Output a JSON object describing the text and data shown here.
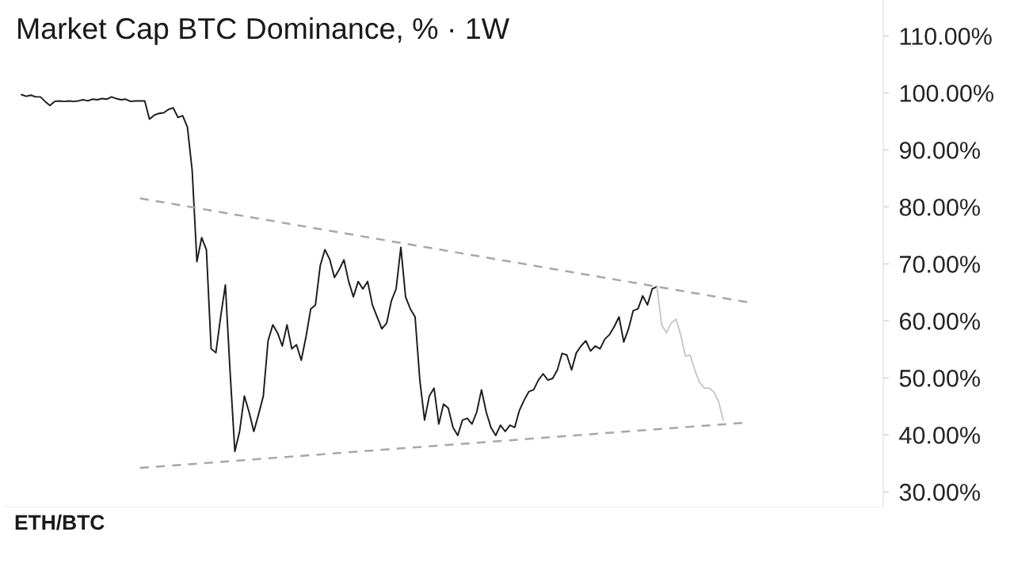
{
  "chart_data": {
    "type": "line",
    "title": "Market Cap BTC Dominance, % · 1W",
    "annotations": [
      "ETH/BTC"
    ],
    "categories": [
      null,
      null,
      null,
      null,
      null,
      null,
      null,
      null,
      null,
      null,
      null,
      null,
      null,
      null,
      null,
      null,
      null,
      null,
      null,
      null,
      null,
      null,
      null,
      null,
      null,
      null,
      null,
      null,
      null,
      null,
      null,
      null,
      null,
      null,
      null,
      null,
      null,
      null,
      null,
      null,
      null,
      null,
      null,
      null,
      null,
      null,
      null,
      null,
      null,
      null,
      null,
      null,
      null,
      null,
      null,
      null,
      null,
      null,
      null,
      null,
      null,
      null,
      null,
      null,
      null,
      null,
      null,
      null,
      null,
      null,
      null,
      null,
      null,
      null,
      null,
      null,
      null,
      null,
      null,
      null,
      null,
      null,
      null,
      null,
      null,
      null,
      null,
      null,
      null,
      null,
      null,
      null,
      null,
      null,
      null,
      null,
      null,
      null,
      null,
      null,
      null,
      null,
      null,
      null,
      null,
      null,
      null,
      null,
      null,
      null,
      null,
      null,
      null,
      null,
      null,
      null,
      null,
      null,
      null,
      null,
      null,
      null,
      null,
      null,
      null,
      null,
      null,
      null,
      null,
      null,
      null,
      null,
      null,
      null,
      null,
      null,
      null,
      null,
      null,
      null,
      null,
      null,
      null,
      null,
      null,
      null,
      null,
      null,
      null,
      null,
      null,
      null,
      null,
      null
    ],
    "series": [
      {
        "color": "#1c1c1c",
        "values": [
          99.7,
          99.4,
          99.6,
          99.3,
          99.3,
          98.5,
          97.8,
          98.5,
          98.6,
          98.5,
          98.6,
          98.5,
          98.6,
          98.8,
          98.6,
          98.9,
          98.8,
          99.0,
          98.9,
          99.3,
          99.0,
          98.8,
          98.9,
          98.5,
          98.6,
          98.6,
          98.6,
          95.4,
          96.1,
          96.4,
          96.5,
          97.1,
          97.4,
          95.7,
          96.0,
          94.0,
          86.4,
          70.4,
          74.6,
          72.5,
          55.1,
          54.4,
          60.7,
          66.3,
          51.0,
          37.1,
          40.6,
          46.8,
          44.0,
          40.6,
          43.6,
          46.8,
          56.5,
          59.3,
          57.9,
          55.6,
          59.3,
          55.1,
          55.8,
          53.1,
          57.2,
          62.1,
          62.8,
          69.7,
          72.5,
          70.8,
          67.6,
          69.0,
          70.7,
          66.9,
          64.2,
          66.9,
          65.6,
          66.9,
          62.8,
          60.7,
          58.6,
          59.6,
          63.5,
          65.6,
          72.9,
          64.2,
          62.1,
          60.7,
          49.6,
          42.6,
          46.8,
          48.2,
          41.9,
          45.4,
          44.7,
          41.3,
          39.9,
          42.6,
          42.9,
          41.9,
          44.0,
          47.9,
          44.0,
          41.3,
          39.9,
          41.7,
          40.6,
          41.7,
          41.3,
          44.3,
          46.1,
          47.6,
          47.9,
          49.6,
          50.7,
          49.6,
          49.9,
          51.4,
          54.3,
          54.0,
          51.4,
          54.4,
          55.6,
          56.5,
          54.7,
          55.6,
          55.1,
          56.8,
          57.6,
          59.0,
          60.7,
          56.3,
          58.6,
          61.8,
          62.1,
          64.4,
          62.8,
          65.6,
          66.0,
          null,
          null,
          null,
          null,
          null,
          null,
          null,
          null,
          null,
          null,
          null,
          null,
          null,
          null,
          null,
          null,
          null,
          null,
          null
        ]
      },
      {
        "color": "#c8c8c8",
        "values": [
          null,
          null,
          null,
          null,
          null,
          null,
          null,
          null,
          null,
          null,
          null,
          null,
          null,
          null,
          null,
          null,
          null,
          null,
          null,
          null,
          null,
          null,
          null,
          null,
          null,
          null,
          null,
          null,
          null,
          null,
          null,
          null,
          null,
          null,
          null,
          null,
          null,
          null,
          null,
          null,
          null,
          null,
          null,
          null,
          null,
          null,
          null,
          null,
          null,
          null,
          null,
          null,
          null,
          null,
          null,
          null,
          null,
          null,
          null,
          null,
          null,
          null,
          null,
          null,
          null,
          null,
          null,
          null,
          null,
          null,
          null,
          null,
          null,
          null,
          null,
          null,
          null,
          null,
          null,
          null,
          null,
          null,
          null,
          null,
          null,
          null,
          null,
          null,
          null,
          null,
          null,
          null,
          null,
          null,
          null,
          null,
          null,
          null,
          null,
          null,
          null,
          null,
          null,
          null,
          null,
          null,
          null,
          null,
          null,
          null,
          null,
          null,
          null,
          null,
          null,
          null,
          null,
          null,
          null,
          null,
          null,
          null,
          null,
          null,
          null,
          null,
          null,
          null,
          null,
          null,
          null,
          null,
          null,
          null,
          66.0,
          59.3,
          57.9,
          59.6,
          60.3,
          57.6,
          53.8,
          54.0,
          51.3,
          49.2,
          48.2,
          48.2,
          47.5,
          45.8,
          42.6,
          null,
          null,
          null,
          null,
          null
        ]
      },
      {
        "type": "line",
        "color": "#a8a8a8",
        "line_style": "dashed",
        "values": [
          null,
          null,
          null,
          null,
          null,
          null,
          null,
          null,
          null,
          null,
          null,
          null,
          null,
          null,
          null,
          null,
          null,
          null,
          null,
          null,
          null,
          null,
          null,
          null,
          null,
          81.5,
          null,
          null,
          null,
          null,
          null,
          null,
          null,
          null,
          null,
          null,
          null,
          null,
          null,
          null,
          null,
          null,
          null,
          null,
          null,
          null,
          null,
          null,
          null,
          null,
          null,
          null,
          null,
          null,
          null,
          null,
          null,
          null,
          null,
          null,
          null,
          null,
          null,
          null,
          null,
          null,
          null,
          null,
          null,
          null,
          null,
          null,
          null,
          null,
          null,
          null,
          null,
          null,
          null,
          null,
          null,
          null,
          null,
          null,
          null,
          null,
          null,
          null,
          null,
          null,
          null,
          null,
          null,
          null,
          null,
          null,
          null,
          null,
          null,
          null,
          null,
          null,
          null,
          null,
          null,
          null,
          null,
          null,
          null,
          null,
          null,
          null,
          null,
          null,
          null,
          null,
          null,
          null,
          null,
          null,
          null,
          null,
          null,
          null,
          null,
          null,
          null,
          null,
          null,
          null,
          null,
          null,
          null,
          null,
          null,
          null,
          null,
          null,
          null,
          null,
          null,
          null,
          null,
          null,
          null,
          null,
          null,
          null,
          null,
          null,
          null,
          null,
          null,
          63.3
        ]
      },
      {
        "type": "line",
        "color": "#a8a8a8",
        "line_style": "dashed",
        "values": [
          null,
          null,
          null,
          null,
          null,
          null,
          null,
          null,
          null,
          null,
          null,
          null,
          null,
          null,
          null,
          null,
          null,
          null,
          null,
          null,
          null,
          null,
          null,
          null,
          null,
          34.2,
          null,
          null,
          null,
          null,
          null,
          null,
          null,
          null,
          null,
          null,
          null,
          null,
          null,
          null,
          null,
          null,
          null,
          null,
          null,
          null,
          null,
          null,
          null,
          null,
          null,
          null,
          null,
          null,
          null,
          null,
          null,
          null,
          null,
          null,
          null,
          null,
          null,
          null,
          null,
          null,
          null,
          null,
          null,
          null,
          null,
          null,
          null,
          null,
          null,
          null,
          null,
          null,
          null,
          null,
          null,
          null,
          null,
          null,
          null,
          null,
          null,
          null,
          null,
          null,
          null,
          null,
          null,
          null,
          null,
          null,
          null,
          null,
          null,
          null,
          null,
          null,
          null,
          null,
          null,
          null,
          null,
          null,
          null,
          null,
          null,
          null,
          null,
          null,
          null,
          null,
          null,
          null,
          null,
          null,
          null,
          null,
          null,
          null,
          null,
          null,
          null,
          null,
          null,
          null,
          null,
          null,
          null,
          null,
          null,
          null,
          null,
          null,
          null,
          null,
          null,
          null,
          null,
          null,
          null,
          null,
          null,
          null,
          null,
          null,
          null,
          null,
          42.1,
          null
        ]
      }
    ],
    "ylim": [
      27.4,
      116.3
    ],
    "yticks": [
      {
        "value": 30,
        "label": "30.00%"
      },
      {
        "value": 40,
        "label": "40.00%"
      },
      {
        "value": 50,
        "label": "50.00%"
      },
      {
        "value": 60,
        "label": "60.00%"
      },
      {
        "value": 70,
        "label": "70.00%"
      },
      {
        "value": 80,
        "label": "80.00%"
      },
      {
        "value": 90,
        "label": "90.00%"
      },
      {
        "value": 100,
        "label": "100.00%"
      },
      {
        "value": 110,
        "label": "110.00%"
      }
    ],
    "tick_labels": "y",
    "line_style": "solid"
  }
}
